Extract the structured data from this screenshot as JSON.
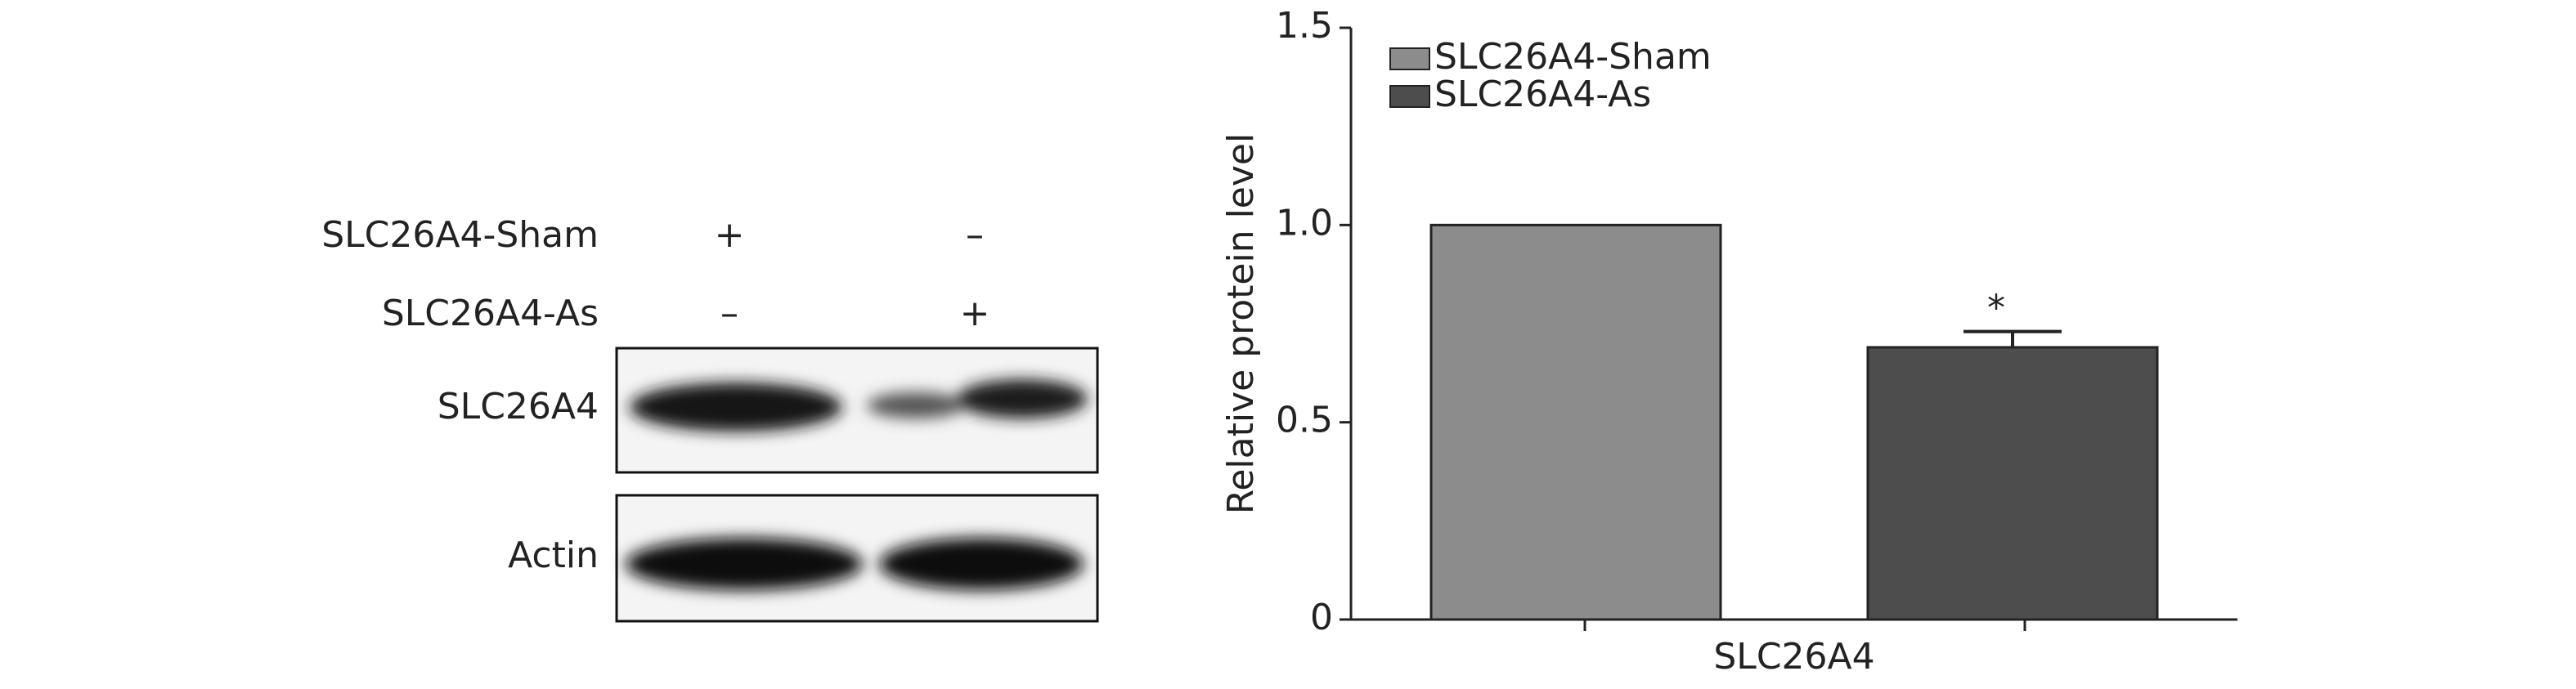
{
  "blot": {
    "rows": [
      {
        "label": "SLC26A4-Sham",
        "lanes": [
          "+",
          "–"
        ]
      },
      {
        "label": "SLC26A4-As",
        "lanes": [
          "–",
          "+"
        ]
      }
    ],
    "panels": [
      "SLC26A4",
      "Actin"
    ]
  },
  "chart_data": {
    "type": "bar",
    "ylabel": "Relative protein level",
    "categories": [
      "SLC26A4"
    ],
    "series": [
      {
        "name": "SLC26A4-Sham",
        "color": "#8c8c8c",
        "values": [
          1
        ]
      },
      {
        "name": "SLC26A4-As",
        "color": "#4d4d4d",
        "values": [
          0.69
        ],
        "errors": [
          0.04
        ],
        "annotations": [
          "*"
        ]
      }
    ],
    "ylim": [
      0,
      1.5
    ],
    "yticks": [
      0,
      0.5,
      {
        "value": 1,
        "label": "1.0"
      },
      1.5
    ],
    "legend": "upper left"
  }
}
